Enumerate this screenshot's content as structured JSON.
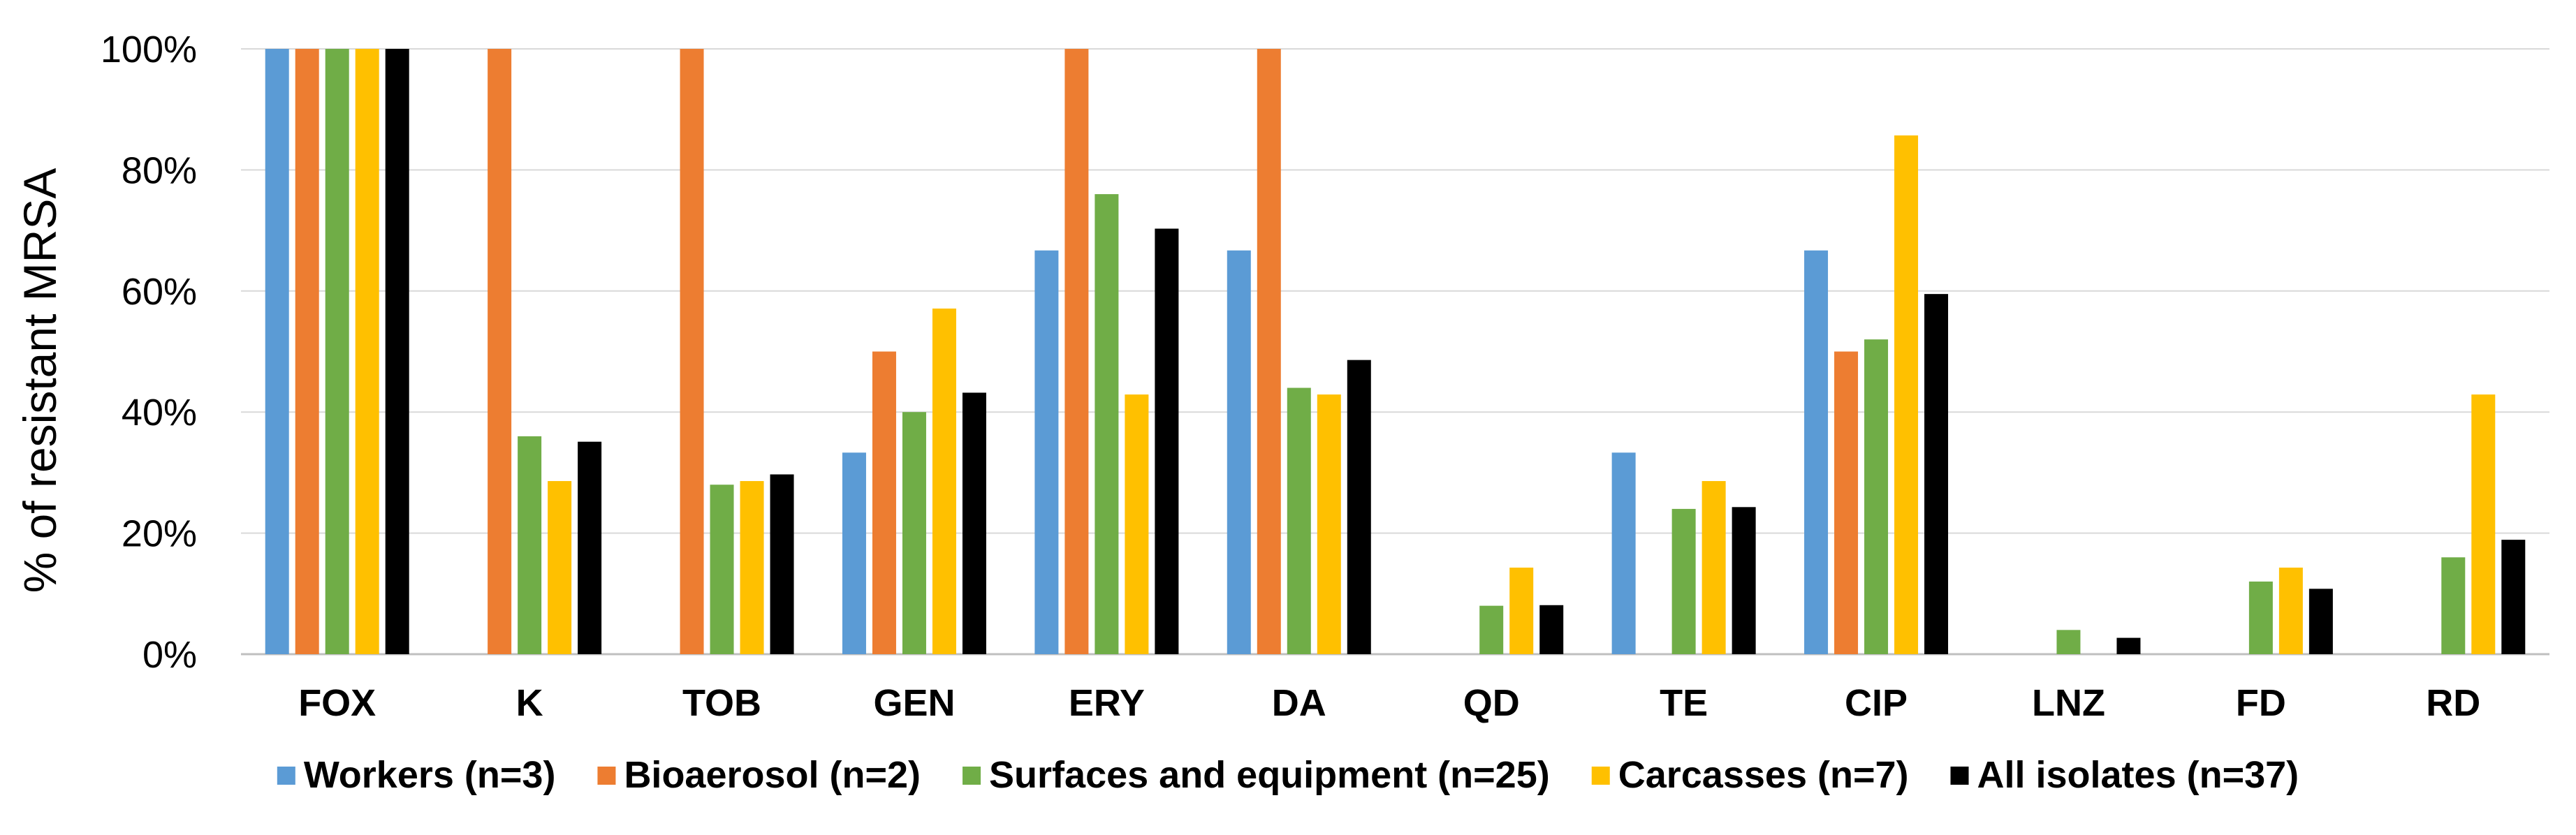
{
  "chart_data": {
    "type": "bar",
    "title": "",
    "xlabel": "",
    "ylabel": "% of resistant MRSA",
    "ylim": [
      0,
      100
    ],
    "yticks": [
      "0%",
      "20%",
      "40%",
      "60%",
      "80%",
      "100%"
    ],
    "grid": true,
    "legend_position": "bottom",
    "categories": [
      "FOX",
      "K",
      "TOB",
      "GEN",
      "ERY",
      "DA",
      "QD",
      "TE",
      "CIP",
      "LNZ",
      "FD",
      "RD"
    ],
    "series": [
      {
        "name": "Workers (n=3)",
        "color": "#5B9BD5",
        "values": [
          100,
          0,
          0,
          33.3,
          66.7,
          66.7,
          0,
          33.3,
          66.7,
          0,
          0,
          0
        ]
      },
      {
        "name": "Bioaerosol (n=2)",
        "color": "#ED7D31",
        "values": [
          100,
          100,
          100,
          50,
          100,
          100,
          0,
          0,
          50,
          0,
          0,
          0
        ]
      },
      {
        "name": "Surfaces and equipment (n=25)",
        "color": "#70AD47",
        "values": [
          100,
          36,
          28,
          40,
          76,
          44,
          8,
          24,
          52,
          4,
          12,
          16
        ]
      },
      {
        "name": "Carcasses (n=7)",
        "color": "#FFC000",
        "values": [
          100,
          28.6,
          28.6,
          57.1,
          42.9,
          42.9,
          14.3,
          28.6,
          85.7,
          0,
          14.3,
          42.9
        ]
      },
      {
        "name": "All isolates (n=37)",
        "color": "#000000",
        "values": [
          100,
          35.1,
          29.7,
          43.2,
          70.3,
          48.6,
          8.1,
          24.3,
          59.5,
          2.7,
          10.8,
          18.9
        ]
      }
    ]
  }
}
